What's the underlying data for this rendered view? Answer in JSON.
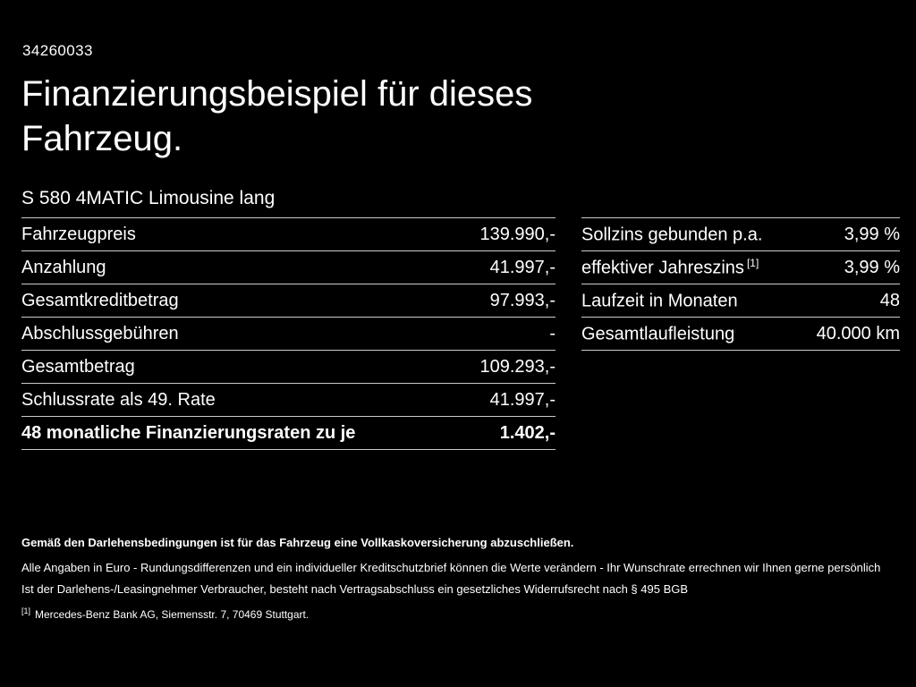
{
  "page": {
    "id": "34260033",
    "title": "Finanzierungsbeispiel für dieses Fahrzeug.",
    "subtitle": "S 580 4MATIC Limousine lang"
  },
  "left_table": {
    "rows": [
      {
        "label": "Fahrzeugpreis",
        "value": "139.990,-"
      },
      {
        "label": "Anzahlung",
        "value": "41.997,-"
      },
      {
        "label": "Gesamtkreditbetrag",
        "value": "97.993,-"
      },
      {
        "label": "Abschlussgebühren",
        "value": "-"
      },
      {
        "label": "Gesamtbetrag",
        "value": "109.293,-"
      },
      {
        "label": "Schlussrate als 49. Rate",
        "value": "41.997,-"
      },
      {
        "label": "48 monatliche Finanzierungsraten zu je",
        "value": "1.402,-"
      }
    ]
  },
  "right_table": {
    "rows": [
      {
        "label": "Sollzins gebunden p.a.",
        "sup": "",
        "value": "3,99 %"
      },
      {
        "label": "effektiver Jahreszins",
        "sup": "[1]",
        "value": "3,99 %"
      },
      {
        "label": "Laufzeit in Monaten",
        "sup": "",
        "value": "48"
      },
      {
        "label": "Gesamtlaufleistung",
        "sup": "",
        "value": "40.000 km"
      }
    ]
  },
  "footer": {
    "line1": "Gemäß den Darlehensbedingungen ist für das Fahrzeug eine Vollkaskoversicherung abzuschließen.",
    "line2": "Alle Angaben in Euro - Rundungsdifferenzen und ein individueller Kreditschutzbrief können die Werte verändern - Ihr Wunschrate errechnen wir Ihnen gerne persönlich",
    "line3": "Ist der Darlehens-/Leasingnehmer Verbraucher, besteht nach Vertragsabschluss ein gesetzliches Widerrufsrecht nach § 495 BGB",
    "line4_sup": "[1]",
    "line4": "Mercedes-Benz Bank AG, Siemensstr. 7, 70469 Stuttgart."
  },
  "colors": {
    "background": "#000000",
    "text": "#ffffff",
    "divider": "#cccccc"
  }
}
